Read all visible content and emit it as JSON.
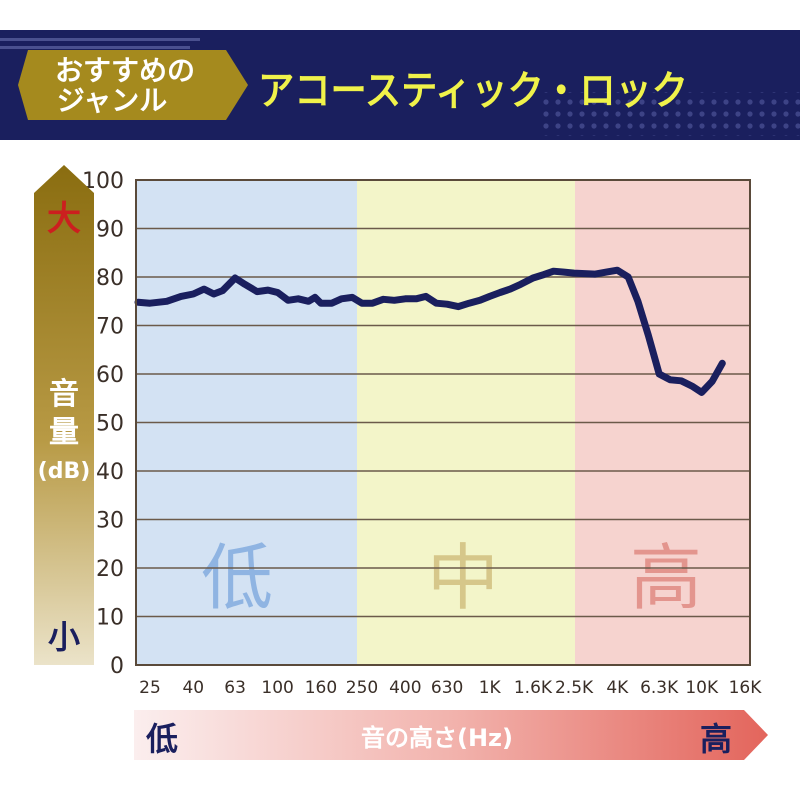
{
  "header": {
    "badge_line1": "おすすめの",
    "badge_line2": "ジャンル",
    "genre": "アコースティック・ロック",
    "colors": {
      "navy": "#1a1f5e",
      "gold": "#a58a1e",
      "accent": "#f0f24a"
    }
  },
  "y_axis": {
    "top_label": "大",
    "bottom_label": "小",
    "label_line1": "音",
    "label_line2": "量",
    "label_unit": "(dB)"
  },
  "x_axis": {
    "low_label": "低",
    "high_label": "高",
    "title": "音の高さ(Hz)"
  },
  "bands": [
    {
      "label": "低",
      "color": "#d3e2f3",
      "text_color": "#8fb4e2"
    },
    {
      "label": "中",
      "color": "#f3f5c9",
      "text_color": "#d6c78a"
    },
    {
      "label": "高",
      "color": "#f6d3cf",
      "text_color": "#e3958e"
    }
  ],
  "chart_data": {
    "type": "line",
    "title": "アコースティック・ロック",
    "xlabel": "音の高さ(Hz)",
    "ylabel": "音量(dB)",
    "ylim": [
      0,
      100
    ],
    "yticks": [
      0,
      10,
      20,
      30,
      40,
      50,
      60,
      70,
      80,
      90,
      100
    ],
    "x_scale": "log",
    "xticks": [
      {
        "label": "25",
        "hz": 25
      },
      {
        "label": "40",
        "hz": 40
      },
      {
        "label": "63",
        "hz": 63
      },
      {
        "label": "100",
        "hz": 100
      },
      {
        "label": "160",
        "hz": 160
      },
      {
        "label": "250",
        "hz": 250
      },
      {
        "label": "400",
        "hz": 400
      },
      {
        "label": "630",
        "hz": 630
      },
      {
        "label": "1K",
        "hz": 1000
      },
      {
        "label": "1.6K",
        "hz": 1600
      },
      {
        "label": "2.5K",
        "hz": 2500
      },
      {
        "label": "4K",
        "hz": 4000
      },
      {
        "label": "6.3K",
        "hz": 6300
      },
      {
        "label": "10K",
        "hz": 10000
      },
      {
        "label": "16K",
        "hz": 16000
      }
    ],
    "band_ranges_hz": [
      [
        20,
        200
      ],
      [
        200,
        2000
      ],
      [
        2000,
        18000
      ]
    ],
    "grid": true,
    "series": [
      {
        "color": "#1a1f5e",
        "points": [
          [
            20,
            74.8
          ],
          [
            25,
            74.6
          ],
          [
            30,
            75
          ],
          [
            35,
            76
          ],
          [
            40,
            76.5
          ],
          [
            45,
            77.5
          ],
          [
            50,
            76.5
          ],
          [
            55,
            77.2
          ],
          [
            63,
            79.8
          ],
          [
            70,
            78.5
          ],
          [
            80,
            77
          ],
          [
            90,
            77.3
          ],
          [
            100,
            76.8
          ],
          [
            112,
            75.2
          ],
          [
            125,
            75.5
          ],
          [
            140,
            75
          ],
          [
            150,
            75.8
          ],
          [
            160,
            74.6
          ],
          [
            180,
            74.6
          ],
          [
            200,
            75.5
          ],
          [
            225,
            75.8
          ],
          [
            250,
            74.6
          ],
          [
            280,
            74.6
          ],
          [
            315,
            75.4
          ],
          [
            355,
            75.2
          ],
          [
            400,
            75.5
          ],
          [
            450,
            75.5
          ],
          [
            500,
            76
          ],
          [
            560,
            74.6
          ],
          [
            630,
            74.4
          ],
          [
            710,
            73.9
          ],
          [
            800,
            74.6
          ],
          [
            900,
            75.2
          ],
          [
            1000,
            76
          ],
          [
            1120,
            76.8
          ],
          [
            1250,
            77.5
          ],
          [
            1400,
            78.5
          ],
          [
            1600,
            79.8
          ],
          [
            1800,
            80.5
          ],
          [
            2000,
            81.2
          ],
          [
            2240,
            81
          ],
          [
            2500,
            80.8
          ],
          [
            2800,
            80.7
          ],
          [
            3150,
            80.6
          ],
          [
            3550,
            81
          ],
          [
            4000,
            81.4
          ],
          [
            4500,
            80
          ],
          [
            5000,
            75
          ],
          [
            5600,
            68
          ],
          [
            6300,
            60
          ],
          [
            7100,
            58.8
          ],
          [
            8000,
            58.6
          ],
          [
            9000,
            57.5
          ],
          [
            10000,
            56.2
          ],
          [
            11200,
            58.5
          ],
          [
            12500,
            62.2
          ]
        ]
      }
    ]
  }
}
